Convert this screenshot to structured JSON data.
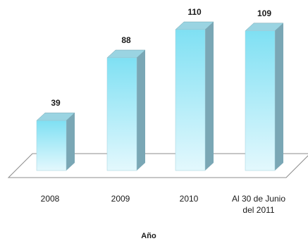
{
  "chart_data": {
    "type": "bar",
    "style": "3d-column",
    "categories": [
      [
        "2008"
      ],
      [
        "2009"
      ],
      [
        "2010"
      ],
      [
        "Al 30 de Junio",
        "del 2011"
      ]
    ],
    "values": [
      39,
      88,
      110,
      109
    ],
    "xlabel": "Año",
    "ylabel": "",
    "ylim": [
      0,
      110
    ],
    "grid": false,
    "legend": "none",
    "colors": {
      "bar_front_top": "#7fe0f3",
      "bar_front_bottom": "#e3f8fd",
      "bar_side": "#7aa7b5",
      "bar_top": "#9ad4e2",
      "floor_line": "#8c8c8c"
    }
  }
}
